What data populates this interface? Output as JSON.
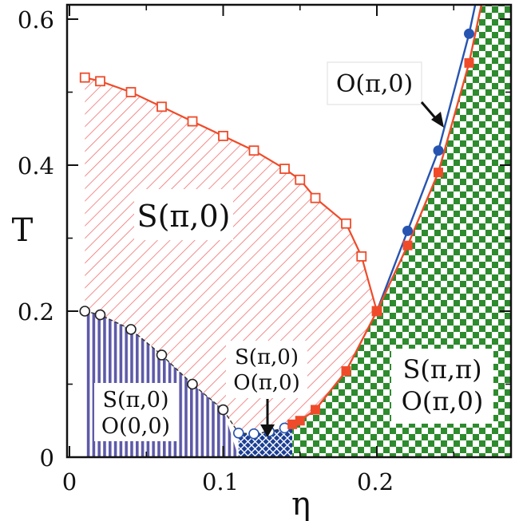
{
  "chart_data": {
    "type": "scatter",
    "title": "",
    "xlabel": "η",
    "ylabel": "T",
    "xlim": [
      0,
      0.29
    ],
    "ylim": [
      0,
      0.62
    ],
    "x_ticks": [
      "0",
      "0.1",
      "0.2"
    ],
    "y_ticks": [
      "0",
      "0.2",
      "0.4",
      "0.6"
    ],
    "grid": false,
    "colors": {
      "stripe_phase": "#f07070",
      "vertical_stripe_phase": "#5e5aa8",
      "checker_phase": "#2e8b2e",
      "mixed_phase": "#1c3f94",
      "red_line": "#ef4b2a",
      "blue_line": "#2754b0",
      "open_marker": "#333333"
    },
    "series": [
      {
        "marker": "open-square",
        "color": "#ef4b2a",
        "x": [
          0.01,
          0.02,
          0.04,
          0.06,
          0.08,
          0.1,
          0.12,
          0.14,
          0.15,
          0.16,
          0.18,
          0.19,
          0.2
        ],
        "y": [
          0.52,
          0.515,
          0.5,
          0.48,
          0.46,
          0.44,
          0.42,
          0.395,
          0.38,
          0.355,
          0.32,
          0.275,
          0.2
        ]
      },
      {
        "marker": "open-circle",
        "color": "#222222",
        "x": [
          0.01,
          0.02,
          0.04,
          0.06,
          0.08,
          0.1,
          0.11,
          0.12,
          0.13,
          0.14
        ],
        "y": [
          0.2,
          0.195,
          0.175,
          0.14,
          0.1,
          0.065,
          0.033,
          0.032,
          0.035,
          0.04
        ]
      },
      {
        "marker": "filled-square",
        "color": "#ef4b2a",
        "x": [
          0.145,
          0.15,
          0.16,
          0.18,
          0.2,
          0.22,
          0.24,
          0.26
        ],
        "y": [
          0.045,
          0.05,
          0.065,
          0.118,
          0.2,
          0.29,
          0.39,
          0.54
        ]
      },
      {
        "marker": "filled-circle",
        "color": "#2754b0",
        "x": [
          0.22,
          0.24,
          0.26
        ],
        "y": [
          0.31,
          0.42,
          0.58
        ]
      }
    ],
    "annotations": [
      {
        "text": "S(π,0)"
      },
      {
        "text": "S(π,0)\nO(0,0)"
      },
      {
        "text": "S(π,0)\nO(π,0)"
      },
      {
        "text": "S(π,π)\nO(π,0)"
      },
      {
        "text": "O(π,0)"
      }
    ]
  },
  "labels": {
    "xlabel": "η",
    "ylabel": "T",
    "x0": "0",
    "x1": "0.1",
    "x2": "0.2",
    "y0": "0",
    "y1": "0.2",
    "y2": "0.4",
    "y3": "0.6",
    "region_stripe": "S(π,0)",
    "region_low_line1": "S(π,0)",
    "region_low_line2": "O(0,0)",
    "region_mixed_line1": "S(π,0)",
    "region_mixed_line2": "O(π,0)",
    "region_checker_line1": "S(π,π)",
    "region_checker_line2": "O(π,0)",
    "region_orbital": "O(π,0)"
  }
}
